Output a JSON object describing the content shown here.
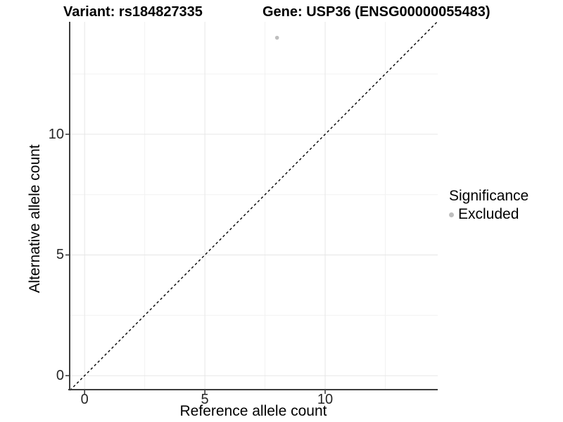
{
  "header": {
    "variant_title": "Variant: rs184827335",
    "gene_title": "Gene: USP36 (ENSG00000055483)"
  },
  "chart_data": {
    "type": "scatter",
    "xlabel": "Reference allele count",
    "ylabel": "Alternative allele count",
    "xticks": [
      0,
      5,
      10
    ],
    "yticks": [
      0,
      5,
      10
    ],
    "x_minor_ticks": [
      2.5,
      7.5,
      12.5
    ],
    "y_minor_ticks": [
      2.5,
      7.5,
      12.5
    ],
    "xlim": [
      -0.65,
      14.68
    ],
    "ylim": [
      -0.61,
      14.66
    ],
    "grid": "major and minor, light gray, white background",
    "points": [
      {
        "x": 8,
        "y": 14,
        "series": "Excluded"
      }
    ],
    "reference_line": {
      "style": "dashed",
      "slope": 1,
      "intercept": 0,
      "description": "y = x identity line"
    },
    "legend": {
      "title": "Significance",
      "position": "right",
      "items": [
        {
          "label": "Excluded",
          "color": "#bebebe"
        }
      ]
    }
  },
  "colors": {
    "background": "#ffffff",
    "point": "#bebebe",
    "grid_major": "#e6e6e6",
    "grid_minor": "#f2f2f2",
    "axis_line": "#3d3d3d",
    "tick_mark": "#333333",
    "tick_text": "#262626",
    "title_text": "#000000",
    "dashed_line": "#000000"
  }
}
